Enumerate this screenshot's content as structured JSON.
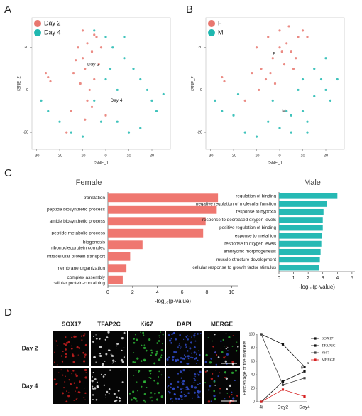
{
  "panels": [
    "A",
    "B",
    "C",
    "D"
  ],
  "micrographs": {
    "columns": [
      "SOX17",
      "TFAP2C",
      "Ki67",
      "DAPI",
      "MERGE"
    ],
    "rows": [
      "Day 2",
      "Day 4"
    ]
  },
  "chart_data": [
    {
      "type": "scatter",
      "xlabel": "tSNE_1",
      "ylabel": "tSNE_2",
      "xlim": [
        -32,
        28
      ],
      "ylim": [
        -28,
        34
      ],
      "xticks": [
        -30,
        -20,
        -10,
        0,
        10,
        20
      ],
      "yticks": [
        -20,
        0,
        20
      ],
      "legend": "top-left",
      "annotations": [
        "Day 2",
        "Day 4"
      ],
      "series": [
        {
          "name": "Day 2",
          "color": "#e8776f",
          "x": [
            -12,
            -10,
            -8,
            -6,
            -9,
            -5,
            -3,
            -11,
            -7,
            -4,
            -14,
            -13,
            -8,
            -2,
            -6,
            -25,
            -24,
            -26,
            -10,
            -5,
            0,
            -9,
            -17,
            -15
          ],
          "values": [
            20,
            15,
            22,
            18,
            10,
            5,
            12,
            3,
            0,
            25,
            8,
            14,
            -5,
            20,
            -8,
            6,
            4,
            8,
            28,
            26,
            -12,
            -14,
            -20,
            -10
          ]
        },
        {
          "name": "Day 4",
          "color": "#1fb8b0",
          "x": [
            -5,
            0,
            3,
            8,
            12,
            15,
            18,
            20,
            22,
            -20,
            -25,
            -28,
            -15,
            -10,
            5,
            10,
            15,
            -5,
            0,
            2,
            8,
            25,
            -2,
            5
          ],
          "values": [
            28,
            25,
            20,
            15,
            10,
            5,
            0,
            -5,
            -10,
            -15,
            -10,
            -5,
            -20,
            -22,
            -15,
            -20,
            -18,
            -5,
            5,
            10,
            25,
            -2,
            -15,
            0
          ]
        }
      ]
    },
    {
      "type": "scatter",
      "xlabel": "tSNE_1",
      "ylabel": "tSNE_2",
      "xlim": [
        -32,
        28
      ],
      "ylim": [
        -28,
        34
      ],
      "xticks": [
        -30,
        -20,
        -10,
        0,
        10,
        20
      ],
      "yticks": [
        -20,
        0,
        20
      ],
      "legend": "top-left",
      "annotations": [
        "F",
        "M"
      ],
      "series": [
        {
          "name": "F",
          "color": "#e8776f",
          "x": [
            -10,
            -5,
            0,
            3,
            5,
            8,
            -8,
            -3,
            2,
            6,
            -12,
            -6,
            10,
            -2,
            4,
            -25,
            -24,
            -15,
            7,
            0,
            -4,
            12,
            -9,
            1
          ],
          "values": [
            20,
            25,
            28,
            22,
            18,
            25,
            10,
            15,
            12,
            10,
            8,
            5,
            28,
            3,
            30,
            6,
            4,
            -5,
            15,
            20,
            8,
            25,
            0,
            18
          ]
        },
        {
          "name": "M",
          "color": "#1fb8b0",
          "x": [
            15,
            18,
            20,
            22,
            10,
            12,
            5,
            0,
            -5,
            -10,
            -15,
            -20,
            -28,
            -25,
            8,
            15,
            20,
            25,
            -3,
            3,
            10,
            -18,
            5,
            12
          ],
          "values": [
            10,
            5,
            0,
            -5,
            -10,
            -15,
            -20,
            -18,
            -15,
            -22,
            -20,
            -12,
            -5,
            -10,
            0,
            -3,
            15,
            5,
            -5,
            -10,
            5,
            -2,
            -12,
            -20
          ]
        }
      ]
    },
    {
      "type": "bar",
      "orientation": "horizontal",
      "title": "Female",
      "xlabel": "-log₁₀(p-value)",
      "color": "#ef7770",
      "categories": [
        "translation",
        "peptide biosynthetic process",
        "amide biosynthetic process",
        "peptide metabolic process",
        "biogenesis\nribonucleoprotein complex",
        "intracellular protein transport",
        "membrane organization",
        "complex assembly\ncellular protein-containing"
      ],
      "values": [
        8.9,
        8.8,
        7.9,
        7.7,
        2.8,
        1.8,
        1.5,
        1.2
      ],
      "xlim": [
        0,
        10.5
      ],
      "xticks": [
        0,
        2,
        4,
        6,
        8,
        10
      ]
    },
    {
      "type": "bar",
      "orientation": "horizontal",
      "title": "Male",
      "xlabel": "-log₁₀(p-value)",
      "color": "#26b9b4",
      "categories": [
        "regulation of binding",
        "negative regulation of molecular function",
        "response to hypoxia",
        "response to decreased oxygen levels",
        "positive regulation of binding",
        "response to metal ion",
        "response to oxygen levels",
        "embryonic morphogenesis",
        "muscle structure development",
        "cellular response to growth factor stimulus"
      ],
      "values": [
        4.0,
        3.3,
        3.05,
        3.0,
        3.0,
        2.95,
        2.9,
        2.85,
        2.8,
        2.75
      ],
      "xlim": [
        0,
        5.2
      ],
      "xticks": [
        0,
        1,
        2,
        3,
        4,
        5
      ]
    },
    {
      "type": "line",
      "ylabel": "Percentage of the markers",
      "categories": [
        "4i",
        "Day2",
        "Day4"
      ],
      "ylim": [
        0,
        100
      ],
      "yticks": [
        0,
        20,
        40,
        60,
        80,
        100
      ],
      "legend": "right",
      "annotations": [
        "a",
        "b"
      ],
      "series": [
        {
          "name": "SOX17",
          "color": "#111111",
          "values": [
            100,
            85,
            52
          ]
        },
        {
          "name": "TFAP2C",
          "color": "#111111",
          "values": [
            0,
            30,
            45
          ]
        },
        {
          "name": "Ki67",
          "color": "#444444",
          "values": [
            100,
            25,
            35
          ]
        },
        {
          "name": "MERGE",
          "color": "#d62020",
          "values": [
            0,
            18,
            8
          ]
        }
      ]
    }
  ]
}
